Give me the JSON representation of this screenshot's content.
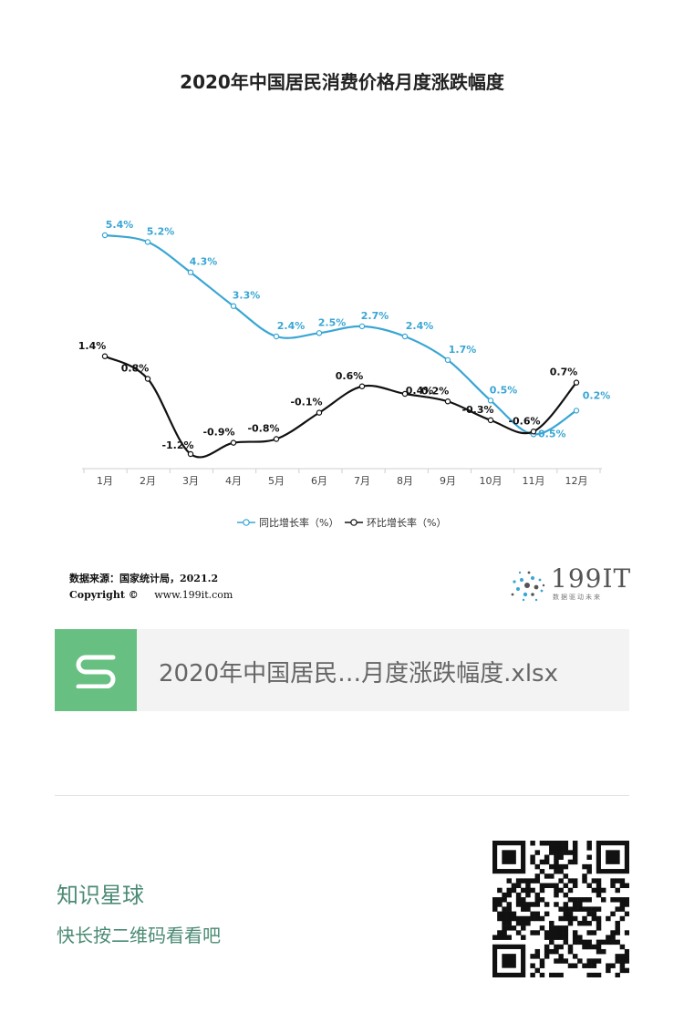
{
  "chart_data": {
    "type": "line",
    "title": "2020年中国居民消费价格月度涨跌幅度",
    "categories": [
      "1月",
      "2月",
      "3月",
      "4月",
      "5月",
      "6月",
      "7月",
      "8月",
      "9月",
      "10月",
      "11月",
      "12月"
    ],
    "series": [
      {
        "name": "同比增长率（%）",
        "color": "#3aa6d4",
        "values": [
          5.4,
          5.2,
          4.3,
          3.3,
          2.4,
          2.5,
          2.7,
          2.4,
          1.7,
          0.5,
          -0.5,
          0.2
        ],
        "labels": [
          "5.4%",
          "5.2%",
          "4.3%",
          "3.3%",
          "2.4%",
          "2.5%",
          "2.7%",
          "2.4%",
          "1.7%",
          "0.5%",
          "-0.5%",
          "0.2%"
        ]
      },
      {
        "name": "环比增长率（%）",
        "color": "#111111",
        "values": [
          1.4,
          0.8,
          -1.2,
          -0.9,
          -0.8,
          -0.1,
          0.6,
          0.4,
          0.2,
          -0.3,
          -0.6,
          0.7
        ],
        "labels": [
          "1.4%",
          "0.8%",
          "-1.2%",
          "-0.9%",
          "-0.8%",
          "-0.1%",
          "0.6%",
          "0.4%",
          "0.2%",
          "-0.3%",
          "-0.6%",
          "0.7%"
        ]
      }
    ],
    "legend_position": "bottom",
    "grid": false
  },
  "source": {
    "text": "数据来源：国家统计局，2021.2",
    "copyright_label": "Copyright ©",
    "url": "www.199it.com"
  },
  "brand": {
    "name": "199IT",
    "tagline": "数据驱动未来",
    "dot_color": "#3aa6d4"
  },
  "file": {
    "icon": "spreadsheet-s-icon",
    "icon_color": "#67c082",
    "name": "2020年中国居民…月度涨跌幅度.xlsx"
  },
  "footer": {
    "title": "知识星球",
    "hint": "快长按二维码看看吧",
    "accent_color": "#4b8b73"
  }
}
